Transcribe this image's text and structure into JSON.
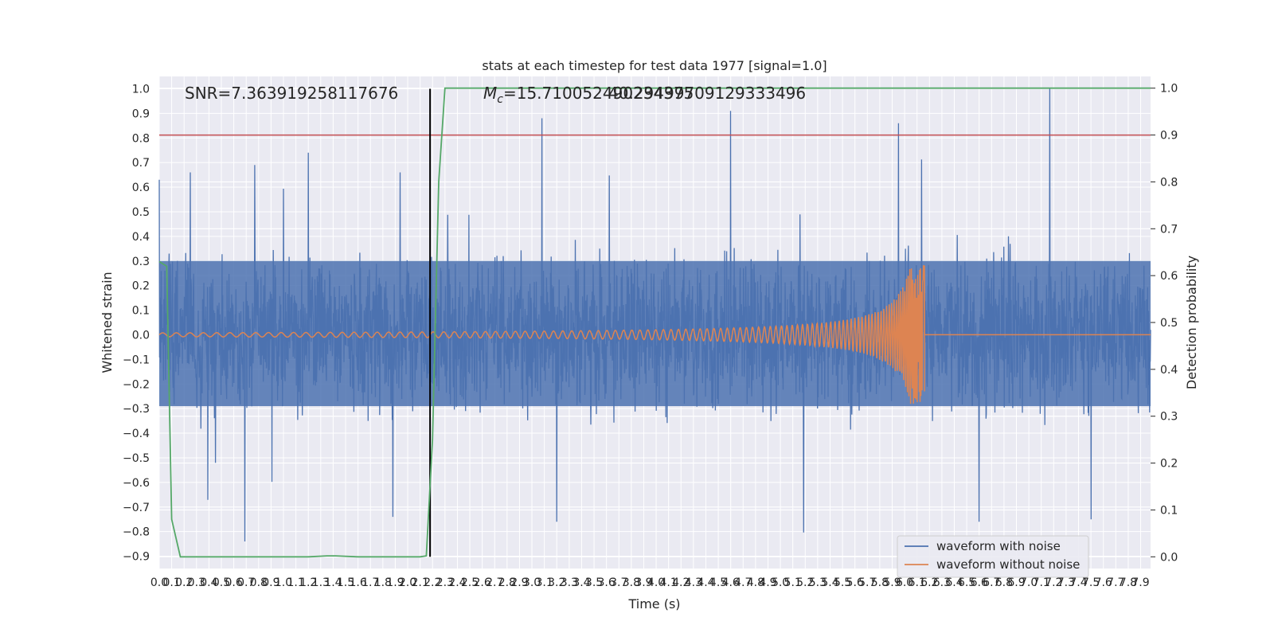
{
  "chart_data": {
    "type": "line",
    "title": "stats at each timestep for test data 1977 [signal=1.0]",
    "xlabel": "Time (s)",
    "ylabel": "Whitened strain",
    "y2label": "Detection probability",
    "annotations": {
      "snr": "SNR=7.363919258117676",
      "mc_prefix": "M",
      "mc_sub": "c",
      "mc_value": "=15.710052490234375",
      "overlap": "40.29499709129333496"
    },
    "xlim": [
      0.0,
      7.98
    ],
    "ylim": [
      -0.95,
      1.05
    ],
    "y2lim": [
      -0.025,
      1.025
    ],
    "x_ticks": [
      0.0,
      0.1,
      0.2,
      0.3,
      0.4,
      0.5,
      0.6,
      0.7,
      0.8,
      0.9,
      1.0,
      1.1,
      1.2,
      1.3,
      1.4,
      1.5,
      1.6,
      1.7,
      1.8,
      1.9,
      2.0,
      2.1,
      2.2,
      2.3,
      2.4,
      2.5,
      2.6,
      2.7,
      2.8,
      2.9,
      3.0,
      3.1,
      3.2,
      3.3,
      3.4,
      3.5,
      3.6,
      3.7,
      3.8,
      3.9,
      4.0,
      4.1,
      4.2,
      4.3,
      4.4,
      4.5,
      4.6,
      4.7,
      4.8,
      4.9,
      5.0,
      5.1,
      5.2,
      5.3,
      5.4,
      5.5,
      5.6,
      5.7,
      5.8,
      5.9,
      6.0,
      6.1,
      6.2,
      6.3,
      6.4,
      6.5,
      6.6,
      6.7,
      6.8,
      6.9,
      7.0,
      7.1,
      7.2,
      7.3,
      7.4,
      7.5,
      7.6,
      7.7,
      7.8,
      7.9
    ],
    "y_ticks": [
      -0.9,
      -0.8,
      -0.7,
      -0.6,
      -0.5,
      -0.4,
      -0.3,
      -0.2,
      -0.1,
      0.0,
      0.1,
      0.2,
      0.3,
      0.4,
      0.5,
      0.6,
      0.7,
      0.8,
      0.9,
      1.0
    ],
    "y2_ticks": [
      0.0,
      0.1,
      0.2,
      0.3,
      0.4,
      0.5,
      0.6,
      0.7,
      0.8,
      0.9,
      1.0
    ],
    "grid": true,
    "legend_position": "bottom-right",
    "series": [
      {
        "name": "waveform with noise",
        "color": "#4c72b0",
        "axis": "left",
        "envelope": {
          "upper_typical": 0.3,
          "lower_typical": -0.29,
          "spikes": [
            [
              0.0,
              0.63
            ],
            [
              0.25,
              0.66
            ],
            [
              0.77,
              0.69
            ],
            [
              1.2,
              0.74
            ],
            [
              1.94,
              0.66
            ],
            [
              3.08,
              0.88
            ],
            [
              4.6,
              0.91
            ],
            [
              5.95,
              0.86
            ],
            [
              7.17,
              1.0
            ],
            [
              3.2,
              -0.76
            ],
            [
              1.88,
              -0.74
            ],
            [
              0.69,
              -0.84
            ],
            [
              5.59,
              -0.84
            ],
            [
              6.6,
              -0.76
            ],
            [
              7.5,
              -0.75
            ]
          ]
        }
      },
      {
        "name": "waveform without noise",
        "color": "#dd8452",
        "axis": "left",
        "chirp": {
          "t_merge": 6.16,
          "peak": 0.28,
          "trough": -0.23,
          "start_amplitude": 0.008
        }
      },
      {
        "name": "detection probability",
        "color": "#55a868",
        "axis": "right",
        "x": [
          0.0,
          0.06,
          0.1,
          0.17,
          0.2,
          0.3,
          0.5,
          0.8,
          1.0,
          1.2,
          1.35,
          1.42,
          1.6,
          1.8,
          2.0,
          2.1,
          2.15,
          2.2,
          2.25,
          2.3,
          3.0,
          4.0,
          5.0,
          6.0,
          7.0,
          7.98
        ],
        "values": [
          0.63,
          0.62,
          0.08,
          0.0,
          0.0,
          0.0,
          0.0,
          0.0,
          0.0,
          0.0,
          0.002,
          0.002,
          0.0,
          0.0,
          0.0,
          0.0,
          0.002,
          0.25,
          0.8,
          1.0,
          1.0,
          1.0,
          1.0,
          1.0,
          1.0,
          1.0
        ]
      }
    ],
    "hlines": [
      {
        "axis": "right",
        "value": 0.9,
        "color": "#c44e52"
      }
    ],
    "vlines": [
      {
        "x": 2.18,
        "color": "#000000"
      }
    ]
  }
}
